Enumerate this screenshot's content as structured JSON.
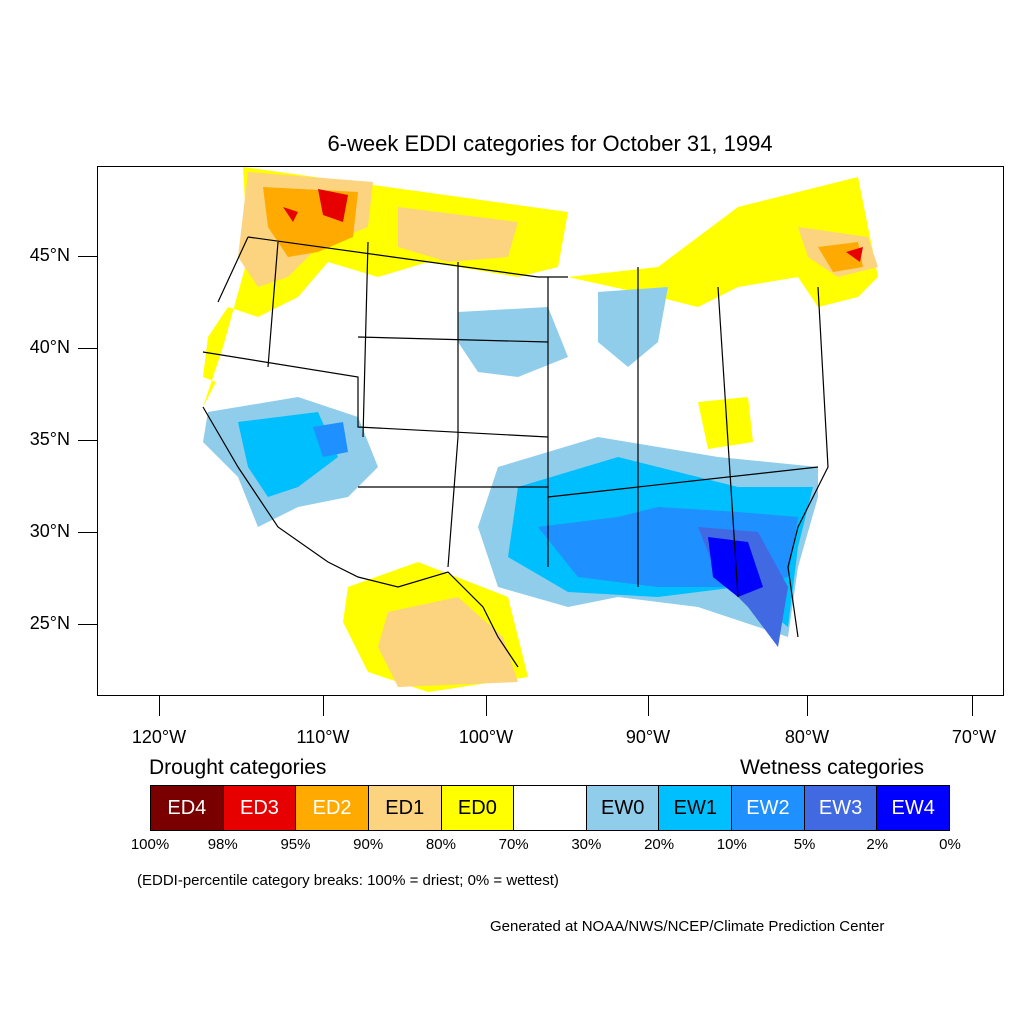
{
  "title": "6-week EDDI categories for October 31, 1994",
  "lat_labels": [
    "45°N",
    "40°N",
    "35°N",
    "30°N",
    "25°N"
  ],
  "lon_labels": [
    "120°W",
    "110°W",
    "100°W",
    "90°W",
    "80°W",
    "70°W"
  ],
  "legend": {
    "drought_heading": "Drought categories",
    "wetness_heading": "Wetness categories",
    "categories": [
      {
        "label": "ED4",
        "color": "#7a0000",
        "text_color": "#ffffff"
      },
      {
        "label": "ED3",
        "color": "#e60000",
        "text_color": "#ffffff"
      },
      {
        "label": "ED2",
        "color": "#ffaa00",
        "text_color": "#ffffff"
      },
      {
        "label": "ED1",
        "color": "#fcd37f",
        "text_color": "#000000"
      },
      {
        "label": "ED0",
        "color": "#ffff00",
        "text_color": "#000000"
      },
      {
        "label": "",
        "color": "#ffffff",
        "text_color": "#000000"
      },
      {
        "label": "EW0",
        "color": "#8fcdeb",
        "text_color": "#000000"
      },
      {
        "label": "EW1",
        "color": "#00bfff",
        "text_color": "#000000"
      },
      {
        "label": "EW2",
        "color": "#1e90ff",
        "text_color": "#ffffff"
      },
      {
        "label": "EW3",
        "color": "#4169e1",
        "text_color": "#ffffff"
      },
      {
        "label": "EW4",
        "color": "#0000ff",
        "text_color": "#ffffff"
      }
    ],
    "breaks": [
      "100%",
      "98%",
      "95%",
      "90%",
      "80%",
      "70%",
      "30%",
      "20%",
      "10%",
      "5%",
      "2%",
      "0%"
    ]
  },
  "note": "(EDDI-percentile category breaks: 100% = driest; 0% = wettest)",
  "credit": "Generated at NOAA/NWS/NCEP/Climate Prediction Center"
}
